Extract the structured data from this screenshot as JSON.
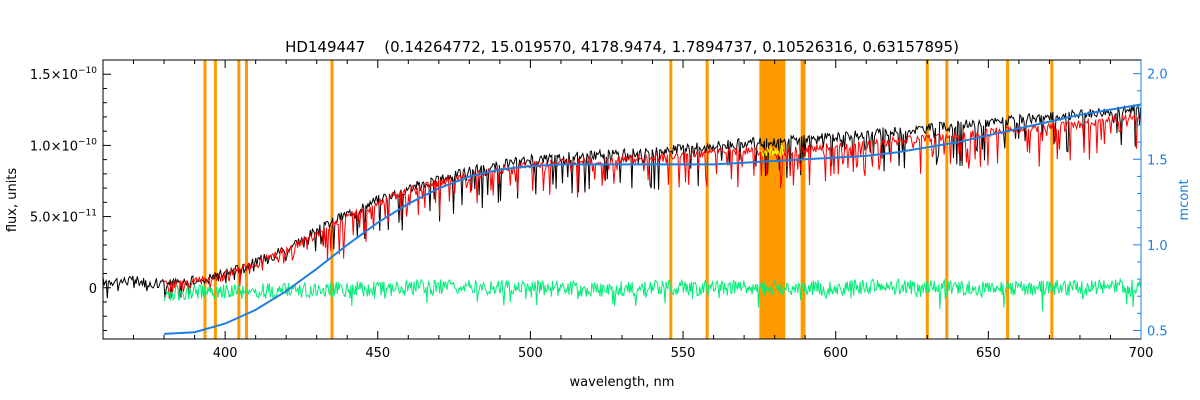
{
  "chart_data": {
    "type": "line",
    "title": "HD149447    (0.14264772, 15.019570, 4178.9474, 1.7894737, 0.10526316, 0.63157895)",
    "xlabel": "wavelength, nm",
    "ylabel": "flux, units",
    "y2label": "mcont",
    "xlim": [
      360,
      700
    ],
    "ylim": [
      -3.6e-11,
      1.6e-10
    ],
    "y2lim": [
      0.45,
      2.08
    ],
    "x_ticks": [
      400,
      450,
      500,
      550,
      600,
      650,
      700
    ],
    "x_tick_labels": [
      "400",
      "450",
      "500",
      "550",
      "600",
      "650",
      "700"
    ],
    "y_ticks": [
      0,
      5e-11,
      1e-10,
      1.5e-10
    ],
    "y_tick_labels": [
      {
        "mant": "0",
        "exp": ""
      },
      {
        "mant": "5.0×10",
        "exp": "−11"
      },
      {
        "mant": "1.0×10",
        "exp": "−10"
      },
      {
        "mant": "1.5×10",
        "exp": "−10"
      }
    ],
    "y2_ticks": [
      0.5,
      1.0,
      1.5,
      2.0
    ],
    "y2_tick_labels": [
      "0.5",
      "1.0",
      "1.5",
      "2.0"
    ],
    "grid": false,
    "legend": "none",
    "colors": {
      "observed": "#000000",
      "model": "#ff0000",
      "residual": "#00ee77",
      "continuum": "#1f7fe0",
      "mask": "#ff9900",
      "mask_highlight": "#ffff00",
      "right_axis": "#1f7fe0"
    },
    "masked_lines_nm": [
      393.4,
      396.8,
      404.5,
      407.0,
      435.0,
      546.0,
      557.9,
      589.0,
      589.6,
      630.0,
      636.4,
      656.3,
      670.8
    ],
    "masked_band_nm": [
      575,
      583.5
    ],
    "series": [
      {
        "axis": "left",
        "x": [
          360,
          370,
          380,
          390,
          400,
          410,
          420,
          430,
          440,
          450,
          460,
          470,
          480,
          490,
          500,
          510,
          520,
          530,
          540,
          550,
          560,
          570,
          580,
          590,
          600,
          610,
          620,
          630,
          640,
          650,
          660,
          670,
          680,
          690,
          700
        ],
        "values": [
          5e-12,
          5e-12,
          3e-12,
          5e-12,
          1e-11,
          1.8e-11,
          2.8e-11,
          4e-11,
          5.2e-11,
          6.2e-11,
          7e-11,
          7.6e-11,
          8.2e-11,
          8.6e-11,
          9e-11,
          9.2e-11,
          9.3e-11,
          9.4e-11,
          9.5e-11,
          9.8e-11,
          1e-10,
          1.02e-10,
          1.02e-10,
          1.04e-10,
          1.06e-10,
          1.08e-10,
          1.1e-10,
          1.12e-10,
          1.14e-10,
          1.16e-10,
          1.18e-10,
          1.2e-10,
          1.22e-10,
          1.24e-10,
          1.26e-10
        ]
      },
      {
        "axis": "left",
        "x": [
          380,
          390,
          400,
          410,
          420,
          430,
          440,
          450,
          460,
          470,
          480,
          490,
          500,
          510,
          520,
          530,
          540,
          550,
          560,
          570,
          580,
          590,
          600,
          610,
          620,
          630,
          640,
          650,
          660,
          670,
          680,
          690,
          700
        ],
        "values": [
          2e-12,
          4e-12,
          9e-12,
          1.7e-11,
          2.6e-11,
          3.8e-11,
          5e-11,
          6e-11,
          6.8e-11,
          7.4e-11,
          7.9e-11,
          8.3e-11,
          8.6e-11,
          8.8e-11,
          8.9e-11,
          9e-11,
          9.1e-11,
          9.3e-11,
          9.5e-11,
          9.6e-11,
          9.6e-11,
          9.7e-11,
          9.9e-11,
          1.01e-10,
          1.03e-10,
          1.05e-10,
          1.07e-10,
          1.09e-10,
          1.11e-10,
          1.13e-10,
          1.15e-10,
          1.18e-10,
          1.2e-10
        ]
      },
      {
        "axis": "left",
        "x": [
          380,
          400,
          420,
          440,
          460,
          480,
          500,
          520,
          540,
          560,
          580,
          600,
          620,
          640,
          660,
          680,
          700
        ],
        "values": [
          -4e-12,
          -3e-12,
          -2e-12,
          -1e-12,
          0,
          1e-12,
          0,
          -1e-12,
          0,
          0,
          0,
          0,
          1e-12,
          0,
          0,
          0,
          1e-12
        ]
      },
      {
        "axis": "right",
        "x": [
          380,
          390,
          400,
          410,
          420,
          430,
          440,
          450,
          460,
          470,
          480,
          490,
          500,
          510,
          520,
          530,
          540,
          550,
          560,
          570,
          580,
          590,
          600,
          610,
          620,
          630,
          640,
          650,
          660,
          670,
          680,
          690,
          700
        ],
        "values": [
          0.48,
          0.49,
          0.54,
          0.62,
          0.73,
          0.86,
          1.0,
          1.13,
          1.24,
          1.33,
          1.4,
          1.44,
          1.46,
          1.47,
          1.47,
          1.47,
          1.47,
          1.47,
          1.47,
          1.48,
          1.49,
          1.5,
          1.51,
          1.52,
          1.54,
          1.57,
          1.6,
          1.64,
          1.68,
          1.72,
          1.76,
          1.79,
          1.82
        ]
      }
    ]
  }
}
